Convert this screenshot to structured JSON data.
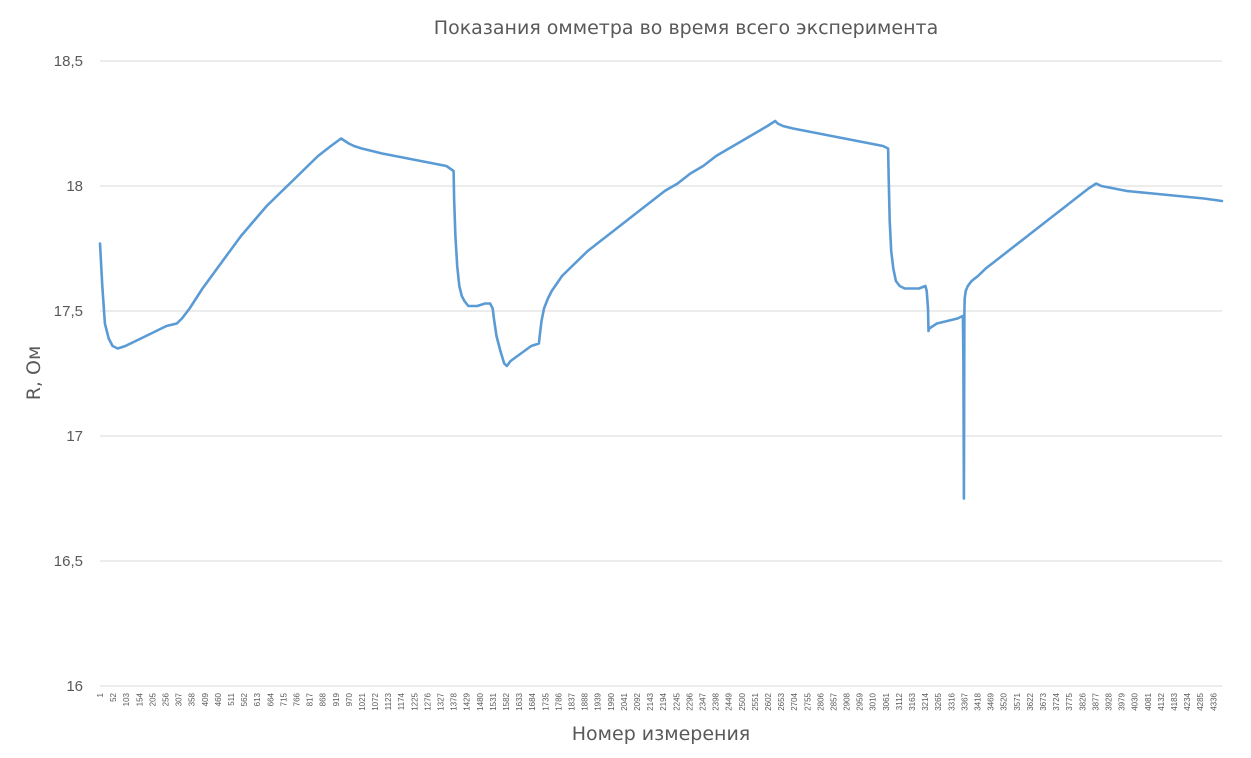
{
  "chart_data": {
    "type": "line",
    "title": "Показания омметра во время всего эксперимента",
    "xlabel": "Номер измерения",
    "ylabel": "R, Ом",
    "ylim": [
      16,
      18.5
    ],
    "yticks": [
      "16",
      "16,5",
      "17",
      "17,5",
      "18",
      "18,5"
    ],
    "xlim": [
      1,
      4370
    ],
    "xtick_start": 1,
    "xtick_step": 51,
    "xtick_count": 86,
    "grid": true,
    "line_color": "#5b9bd5",
    "series": [
      {
        "x": [
          1,
          10,
          20,
          35,
          50,
          70,
          100,
          140,
          180,
          220,
          260,
          300,
          320,
          350,
          400,
          450,
          500,
          550,
          600,
          650,
          700,
          750,
          800,
          850,
          900,
          940,
          970,
          990,
          1020,
          1060,
          1100,
          1150,
          1200,
          1250,
          1300,
          1350,
          1378,
          1380,
          1385,
          1392,
          1400,
          1410,
          1420,
          1435,
          1450,
          1470,
          1500,
          1520,
          1530,
          1535,
          1545,
          1560,
          1575,
          1585,
          1600,
          1640,
          1680,
          1710,
          1713,
          1720,
          1730,
          1745,
          1760,
          1780,
          1800,
          1850,
          1900,
          1950,
          2000,
          2050,
          2100,
          2150,
          2200,
          2250,
          2300,
          2350,
          2400,
          2450,
          2500,
          2550,
          2600,
          2630,
          2640,
          2660,
          2700,
          2750,
          2800,
          2850,
          2900,
          2950,
          3000,
          3050,
          3070,
          3072,
          3076,
          3082,
          3090,
          3100,
          3115,
          3135,
          3160,
          3190,
          3215,
          3220,
          3225,
          3227,
          3230,
          3260,
          3300,
          3340,
          3360,
          3361,
          3363,
          3365,
          3367,
          3368,
          3372,
          3380,
          3395,
          3420,
          3450,
          3500,
          3550,
          3600,
          3650,
          3700,
          3750,
          3800,
          3850,
          3880,
          3900,
          3950,
          4000,
          4100,
          4200,
          4300,
          4370
        ],
        "y": [
          17.77,
          17.6,
          17.45,
          17.39,
          17.36,
          17.35,
          17.36,
          17.38,
          17.4,
          17.42,
          17.44,
          17.45,
          17.47,
          17.51,
          17.59,
          17.66,
          17.73,
          17.8,
          17.86,
          17.92,
          17.97,
          18.02,
          18.07,
          18.12,
          18.16,
          18.19,
          18.17,
          18.16,
          18.15,
          18.14,
          18.13,
          18.12,
          18.11,
          18.1,
          18.09,
          18.08,
          18.06,
          17.95,
          17.8,
          17.68,
          17.6,
          17.56,
          17.54,
          17.52,
          17.52,
          17.52,
          17.53,
          17.53,
          17.51,
          17.47,
          17.4,
          17.34,
          17.29,
          17.28,
          17.3,
          17.33,
          17.36,
          17.37,
          17.4,
          17.46,
          17.51,
          17.55,
          17.58,
          17.61,
          17.64,
          17.69,
          17.74,
          17.78,
          17.82,
          17.86,
          17.9,
          17.94,
          17.98,
          18.01,
          18.05,
          18.08,
          18.12,
          18.15,
          18.18,
          18.21,
          18.24,
          18.26,
          18.25,
          18.24,
          18.23,
          18.22,
          18.21,
          18.2,
          18.19,
          18.18,
          18.17,
          18.16,
          18.15,
          18.03,
          17.86,
          17.74,
          17.67,
          17.62,
          17.6,
          17.59,
          17.59,
          17.59,
          17.6,
          17.58,
          17.51,
          17.42,
          17.43,
          17.45,
          17.46,
          17.47,
          17.48,
          17.48,
          17.3,
          16.75,
          17.5,
          17.55,
          17.58,
          17.6,
          17.62,
          17.64,
          17.67,
          17.71,
          17.75,
          17.79,
          17.83,
          17.87,
          17.91,
          17.95,
          17.99,
          18.01,
          18.0,
          17.99,
          17.98,
          17.97,
          17.96,
          17.95,
          17.94
        ]
      }
    ]
  }
}
